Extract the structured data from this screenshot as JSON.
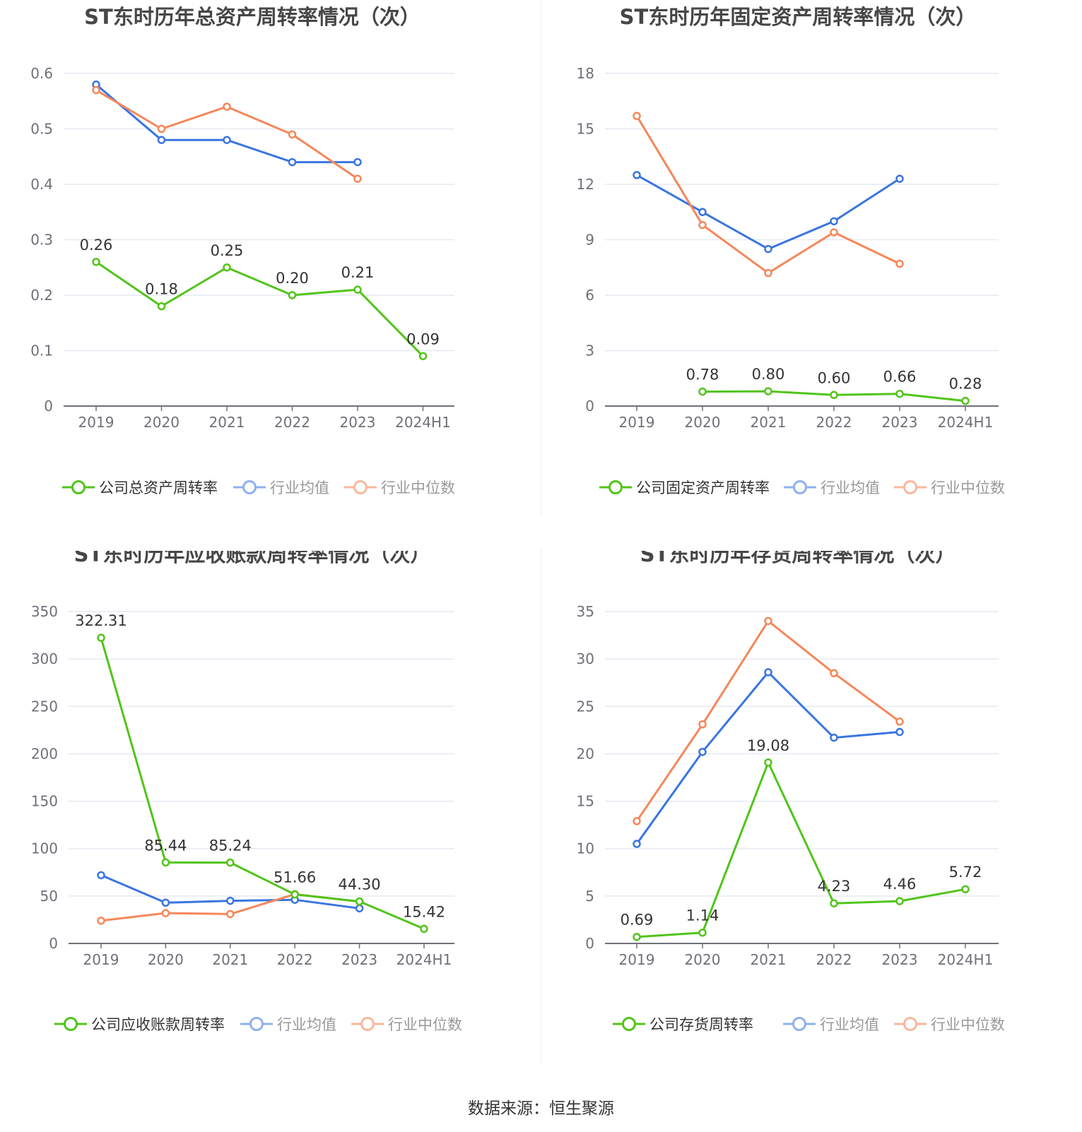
{
  "colors": {
    "company": "#52c41a",
    "industry_mean": "#3a75e0",
    "industry_median": "#f5875a",
    "grid": "#e6e9f2",
    "axis": "#6e7079",
    "tick_text": "#6e7079",
    "label_text": "#333333",
    "title_text": "#464646"
  },
  "categories": [
    "2019",
    "2020",
    "2021",
    "2022",
    "2023",
    "2024H1"
  ],
  "source_text": "数据来源：恒生聚源",
  "chart_data": [
    {
      "type": "line",
      "title": "ST东时历年总资产周转率情况（次）",
      "categories": [
        "2019",
        "2020",
        "2021",
        "2022",
        "2023",
        "2024H1"
      ],
      "ylim": [
        0,
        0.6
      ],
      "yticks": [
        "0",
        "0.1",
        "0.2",
        "0.3",
        "0.4",
        "0.5",
        "0.6"
      ],
      "ytick_values": [
        0,
        0.1,
        0.2,
        0.3,
        0.4,
        0.5,
        0.6
      ],
      "legend_position": "bottom",
      "series": [
        {
          "name": "公司总资产周转率",
          "role": "company",
          "values": [
            0.26,
            0.18,
            0.25,
            0.2,
            0.21,
            0.09
          ],
          "labels": [
            "0.26",
            "0.18",
            "0.25",
            "0.20",
            "0.21",
            "0.09"
          ]
        },
        {
          "name": "行业均值",
          "role": "industry_mean",
          "values": [
            0.58,
            0.48,
            0.48,
            0.44,
            0.44,
            null
          ]
        },
        {
          "name": "行业中位数",
          "role": "industry_median",
          "values": [
            0.57,
            0.5,
            0.54,
            0.49,
            0.41,
            null
          ]
        }
      ]
    },
    {
      "type": "line",
      "title": "ST东时历年固定资产周转率情况（次）",
      "categories": [
        "2019",
        "2020",
        "2021",
        "2022",
        "2023",
        "2024H1"
      ],
      "ylim": [
        0,
        18
      ],
      "yticks": [
        "0",
        "3",
        "6",
        "9",
        "12",
        "15",
        "18"
      ],
      "ytick_values": [
        0,
        3,
        6,
        9,
        12,
        15,
        18
      ],
      "legend_position": "bottom",
      "series": [
        {
          "name": "公司固定资产周转率",
          "role": "company",
          "values": [
            null,
            0.78,
            0.8,
            0.6,
            0.66,
            0.28
          ],
          "labels": [
            null,
            "0.78",
            "0.80",
            "0.60",
            "0.66",
            "0.28"
          ]
        },
        {
          "name": "行业均值",
          "role": "industry_mean",
          "values": [
            12.5,
            10.5,
            8.5,
            10.0,
            12.3,
            null
          ]
        },
        {
          "name": "行业中位数",
          "role": "industry_median",
          "values": [
            15.7,
            9.8,
            7.2,
            9.4,
            7.7,
            null
          ]
        }
      ]
    },
    {
      "type": "line",
      "title": "ST东时历年应收账款周转率情况（次）",
      "categories": [
        "2019",
        "2020",
        "2021",
        "2022",
        "2023",
        "2024H1"
      ],
      "ylim": [
        0,
        350
      ],
      "yticks": [
        "0",
        "50",
        "100",
        "150",
        "200",
        "250",
        "300",
        "350"
      ],
      "ytick_values": [
        0,
        50,
        100,
        150,
        200,
        250,
        300,
        350
      ],
      "legend_position": "bottom",
      "series": [
        {
          "name": "公司应收账款周转率",
          "role": "company",
          "values": [
            322.31,
            85.44,
            85.24,
            51.66,
            44.3,
            15.42
          ],
          "labels": [
            "322.31",
            "85.44",
            "85.24",
            "51.66",
            "44.30",
            "15.42"
          ]
        },
        {
          "name": "行业均值",
          "role": "industry_mean",
          "values": [
            72,
            43,
            45,
            46,
            37,
            null
          ]
        },
        {
          "name": "行业中位数",
          "role": "industry_median",
          "values": [
            24,
            32,
            31,
            52,
            44,
            null
          ]
        }
      ]
    },
    {
      "type": "line",
      "title": "ST东时历年存货周转率情况（次）",
      "categories": [
        "2019",
        "2020",
        "2021",
        "2022",
        "2023",
        "2024H1"
      ],
      "ylim": [
        0,
        35
      ],
      "yticks": [
        "0",
        "5",
        "10",
        "15",
        "20",
        "25",
        "30",
        "35"
      ],
      "ytick_values": [
        0,
        5,
        10,
        15,
        20,
        25,
        30,
        35
      ],
      "legend_position": "bottom",
      "series": [
        {
          "name": "公司存货周转率",
          "role": "company",
          "values": [
            0.69,
            1.14,
            19.08,
            4.23,
            4.46,
            5.72
          ],
          "labels": [
            "0.69",
            "1.14",
            "19.08",
            "4.23",
            "4.46",
            "5.72"
          ]
        },
        {
          "name": "行业均值",
          "role": "industry_mean",
          "values": [
            10.5,
            20.2,
            28.6,
            21.7,
            22.3,
            null
          ]
        },
        {
          "name": "行业中位数",
          "role": "industry_median",
          "values": [
            12.9,
            23.1,
            34.0,
            28.5,
            23.4,
            null
          ]
        }
      ]
    }
  ]
}
